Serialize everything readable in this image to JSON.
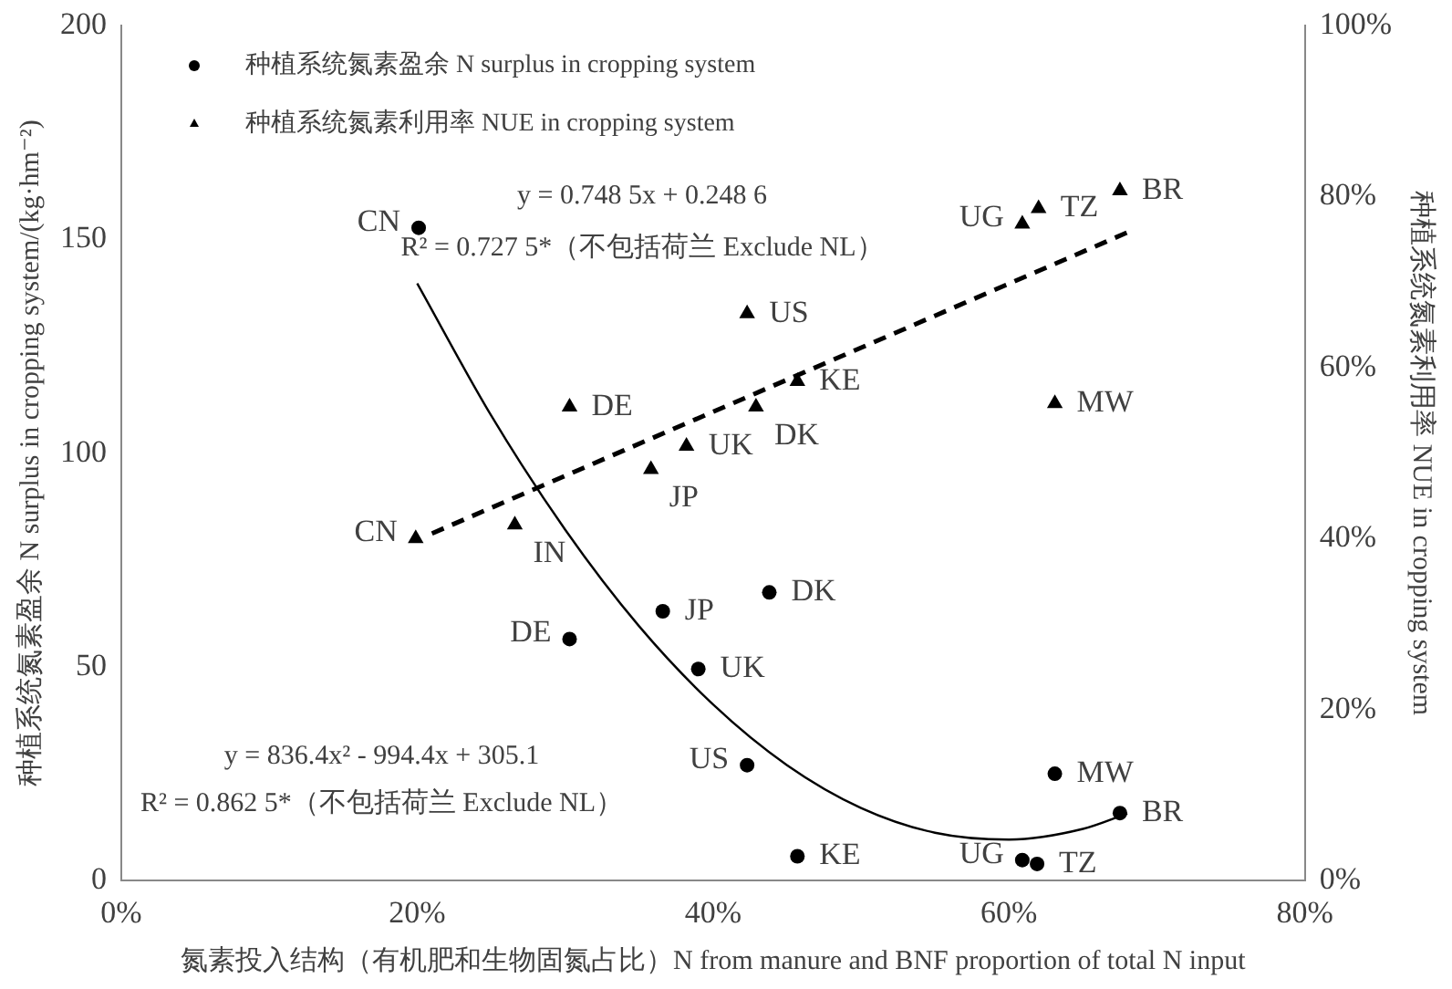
{
  "chart_data": {
    "type": "scatter",
    "xlabel": "氮素投入结构（有机肥和生物固氮占比）N from manure and BNF proportion of total N input",
    "ylabel": "种植系统氮素盈余 N surplus in cropping system/(kg·hm⁻²)",
    "y2label": "种植系统氮素利用率 NUE in cropping system",
    "xlim": [
      0,
      80
    ],
    "xticks": [
      {
        "value": 0,
        "label": "0%"
      },
      {
        "value": 20,
        "label": "20%"
      },
      {
        "value": 40,
        "label": "40%"
      },
      {
        "value": 60,
        "label": "60%"
      },
      {
        "value": 80,
        "label": "80%"
      }
    ],
    "ylim": [
      0,
      200
    ],
    "yticks": [
      0,
      50,
      100,
      150,
      200
    ],
    "y2lim": [
      0,
      100
    ],
    "y2ticks": [
      {
        "value": 0,
        "label": "0%"
      },
      {
        "value": 20,
        "label": "20%"
      },
      {
        "value": 40,
        "label": "40%"
      },
      {
        "value": 60,
        "label": "60%"
      },
      {
        "value": 80,
        "label": "80%"
      },
      {
        "value": 100,
        "label": "100%"
      }
    ],
    "grid": false,
    "legend": "top left",
    "series": [
      {
        "name": "种植系统氮素盈余 N surplus in cropping system",
        "marker": "circle",
        "color": "#000000",
        "x": [
          20.1,
          30.3,
          36.6,
          43.8,
          39.0,
          42.3,
          63.1,
          67.5,
          45.7,
          60.9,
          61.9
        ],
        "values": [
          152.7,
          56.5,
          63,
          67.4,
          49.5,
          27,
          25,
          15.8,
          5.7,
          4.8,
          3.9
        ],
        "value_labels": [
          "CN",
          "DE",
          "JP",
          "DK",
          "UK",
          "US",
          "MW",
          "BR",
          "KE",
          "UG",
          "TZ"
        ]
      },
      {
        "name": "种植系统氮素利用率 NUE in cropping system",
        "marker": "triangle",
        "axis": "y2",
        "color": "#000000",
        "x": [
          19.9,
          26.6,
          30.3,
          35.8,
          38.2,
          42.9,
          45.7,
          42.3,
          63.1,
          60.9,
          62.0,
          67.5
        ],
        "values": [
          40.0,
          41.6,
          55.4,
          48.1,
          50.8,
          55.4,
          58.4,
          66.3,
          55.8,
          76.8,
          78.6,
          80.7
        ],
        "value_labels": [
          "CN",
          "IN",
          "DE",
          "JP",
          "UK",
          "DK",
          "KE",
          "US",
          "MW",
          "UG",
          "TZ",
          "BR"
        ]
      },
      {
        "type": "line",
        "axis": "y2",
        "color": "#000000",
        "line_style": "dashed",
        "marker": "none",
        "x": [
          21,
          68
        ],
        "values": [
          40.6,
          75.8
        ]
      },
      {
        "type": "line",
        "color": "#000000",
        "line_style": "solid",
        "marker": "none",
        "x": [
          20,
          25,
          30,
          35,
          40,
          45,
          50,
          55,
          60,
          65,
          68
        ],
        "values": [
          139.7,
          108.8,
          82.1,
          59.5,
          41.2,
          27.0,
          17.0,
          11.2,
          9.6,
          12.1,
          15.7
        ]
      }
    ],
    "annotations": [
      "y = 0.748 5x + 0.248 6",
      "R² = 0.727 5*（不包括荷兰 Exclude NL）",
      "y = 836.4x² - 994.4x + 305.1",
      "R² = 0.862 5*（不包括荷兰 Exclude NL）"
    ]
  }
}
